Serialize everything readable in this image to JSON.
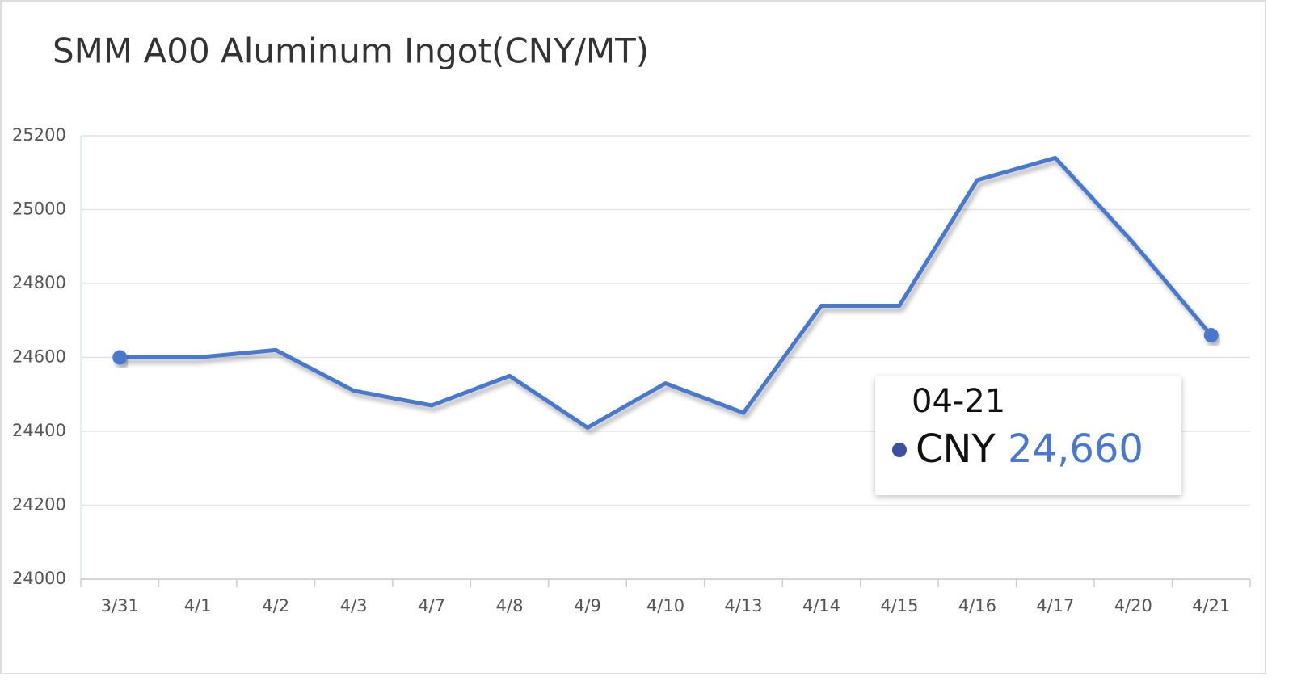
{
  "chart_data": {
    "type": "line",
    "title": "SMM A00 Aluminum Ingot(CNY/MT)",
    "categories": [
      "3/31",
      "4/1",
      "4/2",
      "4/3",
      "4/7",
      "4/8",
      "4/9",
      "4/10",
      "4/13",
      "4/14",
      "4/15",
      "4/16",
      "4/17",
      "4/20",
      "4/21"
    ],
    "series": [
      {
        "name": "CNY",
        "color": "#4a78cf",
        "values": [
          24600,
          24600,
          24620,
          24510,
          24470,
          24550,
          24410,
          24530,
          24450,
          24740,
          24740,
          25080,
          25140,
          24910,
          24660
        ]
      }
    ],
    "ylim": [
      24000,
      25200
    ],
    "yticks": [
      24000,
      24200,
      24400,
      24600,
      24800,
      25000,
      25200
    ],
    "grid": true,
    "tooltip": {
      "x": "04-21",
      "value_label": "24,660"
    }
  }
}
